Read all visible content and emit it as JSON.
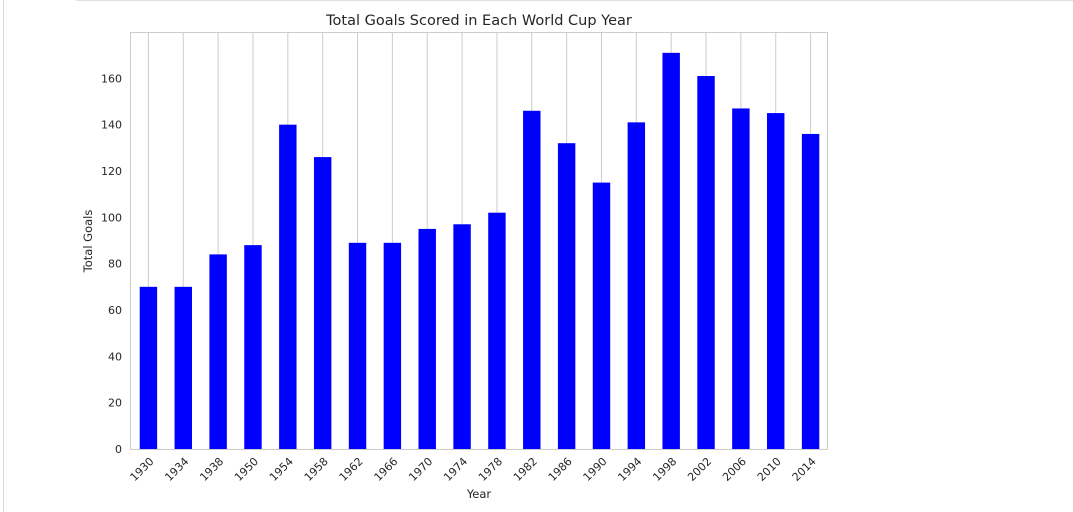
{
  "chart_data": {
    "type": "bar",
    "title": "Total Goals Scored in Each World Cup Year",
    "xlabel": "Year",
    "ylabel": "Total Goals",
    "categories": [
      "1930",
      "1934",
      "1938",
      "1950",
      "1954",
      "1958",
      "1962",
      "1966",
      "1970",
      "1974",
      "1978",
      "1982",
      "1986",
      "1990",
      "1994",
      "1998",
      "2002",
      "2006",
      "2010",
      "2014"
    ],
    "values": [
      70,
      70,
      84,
      88,
      140,
      126,
      89,
      89,
      95,
      97,
      102,
      146,
      132,
      115,
      141,
      171,
      161,
      147,
      145,
      136
    ],
    "ylim": [
      0,
      180
    ],
    "yticks": [
      0,
      20,
      40,
      60,
      80,
      100,
      120,
      140,
      160
    ],
    "bar_color": "#0000ff",
    "grid": "vertical",
    "legend": "none"
  }
}
